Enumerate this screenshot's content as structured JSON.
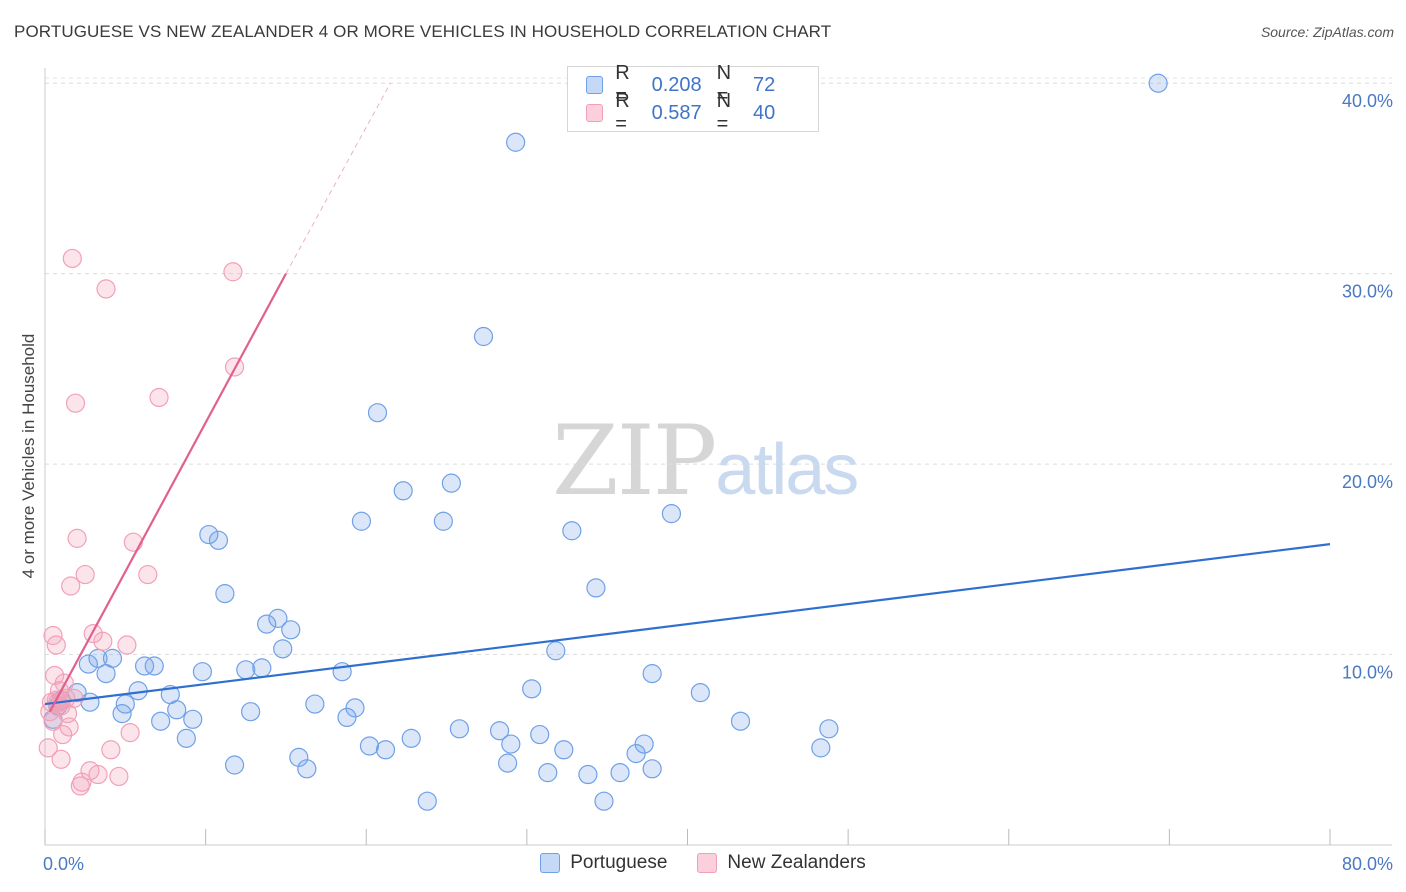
{
  "header": {
    "title": "PORTUGUESE VS NEW ZEALANDER 4 OR MORE VEHICLES IN HOUSEHOLD CORRELATION CHART",
    "source": "Source: ZipAtlas.com"
  },
  "watermark": {
    "zip": "ZIP",
    "atlas": "atlas"
  },
  "legend_top": {
    "rows": [
      {
        "r_key": "R = ",
        "r_val": "0.208",
        "n_key": "N = ",
        "n_val": "72",
        "color": "#6fa0e8"
      },
      {
        "r_key": "R = ",
        "r_val": "0.587",
        "n_key": "N = ",
        "n_val": "40",
        "color": "#f2a0b8"
      }
    ]
  },
  "bottom_legend": [
    {
      "label": "Portuguese",
      "color": "#6fa0e8"
    },
    {
      "label": "New Zealanders",
      "color": "#f2a0b8"
    }
  ],
  "chart_data": {
    "type": "scatter",
    "title": "PORTUGUESE VS NEW ZEALANDER 4 OR MORE VEHICLES IN HOUSEHOLD CORRELATION CHART",
    "ylabel": "4 or more Vehicles in Household",
    "xlabel": "",
    "xlim": [
      0,
      80
    ],
    "ylim": [
      0,
      40.8
    ],
    "x_tick_labels": [
      "0.0%",
      "80.0%"
    ],
    "y_ticks": [
      10,
      20,
      30,
      40
    ],
    "y_tick_labels": [
      "10.0%",
      "20.0%",
      "30.0%",
      "40.0%"
    ],
    "grid": true,
    "legend_placement": "top-center",
    "series": [
      {
        "name": "Portuguese",
        "color": "#6fa0e8",
        "line_color": "#2f6fd0",
        "trend": {
          "x": [
            0,
            80
          ],
          "y": [
            7.4,
            15.8
          ],
          "dashed_extension": false
        },
        "points": [
          [
            0.5,
            6.6
          ],
          [
            0.8,
            7.3
          ],
          [
            1,
            7.6
          ],
          [
            2,
            8
          ],
          [
            2.7,
            9.5
          ],
          [
            2.8,
            7.5
          ],
          [
            3.3,
            9.8
          ],
          [
            3.8,
            9
          ],
          [
            4.2,
            9.8
          ],
          [
            4.8,
            6.9
          ],
          [
            5,
            7.4
          ],
          [
            5.8,
            8.1
          ],
          [
            6.2,
            9.4
          ],
          [
            6.8,
            9.4
          ],
          [
            7.2,
            6.5
          ],
          [
            7.8,
            7.9
          ],
          [
            8.2,
            7.1
          ],
          [
            8.8,
            5.6
          ],
          [
            9.2,
            6.6
          ],
          [
            9.8,
            9.1
          ],
          [
            10.2,
            16.3
          ],
          [
            10.8,
            16
          ],
          [
            11.2,
            13.2
          ],
          [
            11.8,
            4.2
          ],
          [
            12.5,
            9.2
          ],
          [
            12.8,
            7
          ],
          [
            13.5,
            9.3
          ],
          [
            13.8,
            11.6
          ],
          [
            14.5,
            11.9
          ],
          [
            14.8,
            10.3
          ],
          [
            15.3,
            11.3
          ],
          [
            15.8,
            4.6
          ],
          [
            16.3,
            4
          ],
          [
            16.8,
            7.4
          ],
          [
            18.5,
            9.1
          ],
          [
            18.8,
            6.7
          ],
          [
            19.3,
            7.2
          ],
          [
            19.7,
            17
          ],
          [
            20.2,
            5.2
          ],
          [
            20.7,
            22.7
          ],
          [
            21.2,
            5
          ],
          [
            22.3,
            18.6
          ],
          [
            22.8,
            5.6
          ],
          [
            23.8,
            2.3
          ],
          [
            24.8,
            17
          ],
          [
            25.3,
            19
          ],
          [
            25.8,
            6.1
          ],
          [
            27.3,
            26.7
          ],
          [
            28.3,
            6
          ],
          [
            28.8,
            4.3
          ],
          [
            29,
            5.3
          ],
          [
            29.3,
            36.9
          ],
          [
            30.3,
            8.2
          ],
          [
            30.8,
            5.8
          ],
          [
            31.3,
            3.8
          ],
          [
            31.8,
            10.2
          ],
          [
            32.3,
            5
          ],
          [
            32.8,
            16.5
          ],
          [
            33.8,
            3.7
          ],
          [
            34.3,
            13.5
          ],
          [
            34.8,
            2.3
          ],
          [
            35.8,
            3.8
          ],
          [
            36.8,
            4.8
          ],
          [
            37.3,
            5.3
          ],
          [
            37.8,
            9
          ],
          [
            37.8,
            4
          ],
          [
            39,
            17.4
          ],
          [
            40.8,
            8
          ],
          [
            43.3,
            6.5
          ],
          [
            48.3,
            5.1
          ],
          [
            48.8,
            6.1
          ],
          [
            69.3,
            40
          ]
        ]
      },
      {
        "name": "New Zealanders",
        "color": "#f2a0b8",
        "line_color": "#e06090",
        "trend": {
          "x": [
            0.3,
            15
          ],
          "y": [
            7,
            30
          ],
          "dashed_to": [
            21.5,
            40
          ]
        },
        "points": [
          [
            0.2,
            5.1
          ],
          [
            0.3,
            7
          ],
          [
            0.4,
            7.5
          ],
          [
            0.5,
            11
          ],
          [
            0.5,
            6.5
          ],
          [
            0.6,
            8.9
          ],
          [
            0.7,
            10.5
          ],
          [
            0.8,
            7.5
          ],
          [
            0.9,
            8.1
          ],
          [
            1,
            7.5
          ],
          [
            1,
            4.5
          ],
          [
            1.1,
            5.8
          ],
          [
            1.2,
            8.5
          ],
          [
            1.3,
            7.7
          ],
          [
            1.4,
            6.9
          ],
          [
            1.5,
            6.2
          ],
          [
            1.6,
            13.6
          ],
          [
            1.7,
            30.8
          ],
          [
            1.8,
            7.7
          ],
          [
            1.9,
            23.2
          ],
          [
            2,
            16.1
          ],
          [
            2.2,
            3.1
          ],
          [
            2.3,
            3.3
          ],
          [
            2.5,
            14.2
          ],
          [
            2.8,
            3.9
          ],
          [
            3,
            11.1
          ],
          [
            3.3,
            3.7
          ],
          [
            3.6,
            10.7
          ],
          [
            3.8,
            29.2
          ],
          [
            4.1,
            5
          ],
          [
            4.6,
            3.6
          ],
          [
            5.1,
            10.5
          ],
          [
            5.3,
            5.9
          ],
          [
            5.5,
            15.9
          ],
          [
            6.4,
            14.2
          ],
          [
            7.1,
            23.5
          ],
          [
            11.7,
            30.1
          ],
          [
            11.8,
            25.1
          ],
          [
            1,
            7.3
          ],
          [
            0.7,
            7.6
          ]
        ]
      }
    ]
  }
}
